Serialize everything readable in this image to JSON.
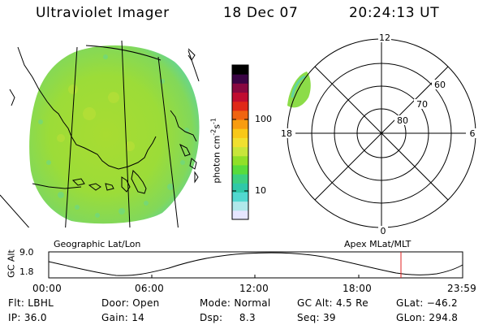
{
  "header": {
    "instrument": "Ultraviolet Imager",
    "date": "18 Dec 07",
    "time": "20:24:13 UT"
  },
  "geo_panel": {
    "label": "Geographic Lat/Lon"
  },
  "colorbar": {
    "unit": "photon cm",
    "unit_sup1": "-2",
    "unit_mid": "s",
    "unit_sup2": "-1",
    "tick_100": "100",
    "tick_10": "10",
    "colors": [
      "#e6e6ff",
      "#b0e8ea",
      "#52d8d0",
      "#2fc8a8",
      "#3cd080",
      "#58dc3c",
      "#90e028",
      "#c8e63a",
      "#f0e030",
      "#f8c818",
      "#f89c10",
      "#f06410",
      "#e02818",
      "#c00c30",
      "#880840",
      "#3a0444",
      "#000000"
    ]
  },
  "polar_panel": {
    "label": "Apex  MLat/MLT",
    "mlt_12": "12",
    "mlt_18": "18",
    "mlt_6": "6",
    "mlt_0": "0",
    "lat_60": "60",
    "lat_70": "70",
    "lat_80": "80"
  },
  "altitude_plot": {
    "ylabel": "GC Alt",
    "ytick_top": "9.0",
    "ytick_bottom": "1.8",
    "xticks": [
      "00:00",
      "06:00",
      "12:00",
      "18:00",
      "23:59"
    ],
    "marker_color": "#e02020"
  },
  "info": {
    "filter": "Flt: LBHL",
    "ip": "IP: 36.0",
    "door": "Door: Open",
    "gain": "Gain: 14",
    "mode": "Mode: Normal",
    "dsp": "Dsp:     8.3",
    "gc_alt": "GC Alt: 4.5 Re",
    "seq": "Seq: 39",
    "glat": "GLat: −46.2",
    "glon": "GLon: 294.8"
  }
}
